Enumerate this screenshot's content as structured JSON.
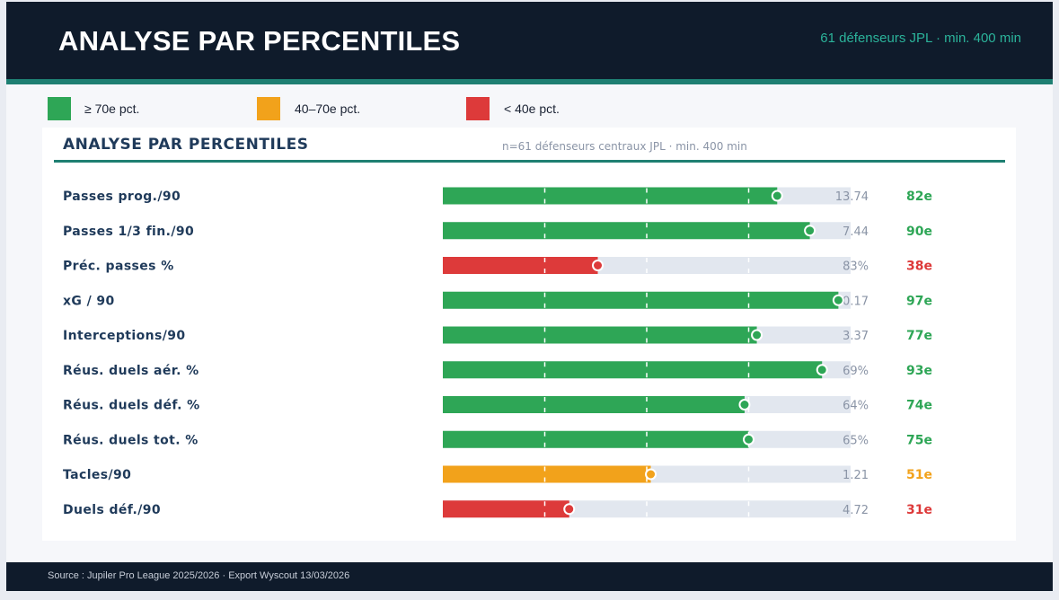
{
  "header": {
    "title": "ANALYSE PAR PERCENTILES",
    "subtitle": "61 défenseurs JPL · min. 400 min"
  },
  "legend": [
    {
      "label": "≥ 70e pct.",
      "color": "#2ea656"
    },
    {
      "label": "40–70e pct.",
      "color": "#f2a21b"
    },
    {
      "label": "< 40e pct.",
      "color": "#dd3a3a"
    }
  ],
  "colors": {
    "high": "#2ea656",
    "mid": "#f2a21b",
    "low": "#dd3a3a",
    "track": "#e2e7ef",
    "title": "#1f3a5a",
    "accent": "#1e7f72"
  },
  "chart_data": {
    "type": "bar",
    "orientation": "horizontal",
    "title": "ANALYSE PAR PERCENTILES",
    "subtitle": "n=61 défenseurs centraux JPL · min. 400 min",
    "xlim": [
      0,
      100
    ],
    "gridlines": [
      25,
      50,
      75
    ],
    "categories": [
      "Passes prog./90",
      "Passes 1/3 fin./90",
      "Préc. passes %",
      "xG / 90",
      "Interceptions/90",
      "Réus. duels aér. %",
      "Réus. duels déf. %",
      "Réus. duels tot. %",
      "Tacles/90",
      "Duels déf./90"
    ],
    "values": [
      82,
      90,
      38,
      97,
      77,
      93,
      74,
      75,
      51,
      31
    ],
    "raw_values": [
      "13.74",
      "7.44",
      "83%",
      "0.17",
      "3.37",
      "69%",
      "64%",
      "65%",
      "1.21",
      "4.72"
    ],
    "percentile_labels": [
      "82e",
      "90e",
      "38e",
      "97e",
      "77e",
      "93e",
      "74e",
      "75e",
      "51e",
      "31e"
    ]
  },
  "footer": {
    "source": "Source : Jupiler Pro League 2025/2026 · Export Wyscout 13/03/2026"
  }
}
